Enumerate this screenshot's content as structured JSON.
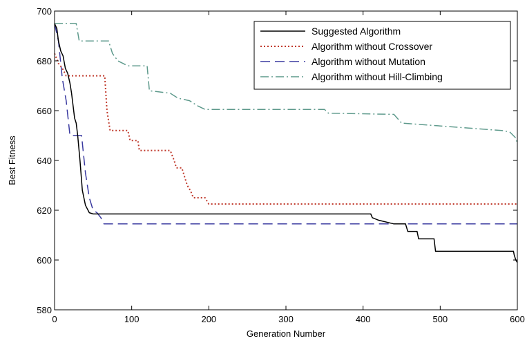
{
  "chart_data": {
    "type": "line",
    "title": "",
    "xlabel": "Generation Number",
    "ylabel": "Best Fitness",
    "xlim": [
      0,
      600
    ],
    "ylim": [
      580,
      700
    ],
    "xticks": [
      0,
      100,
      200,
      300,
      400,
      500,
      600
    ],
    "yticks": [
      580,
      600,
      620,
      640,
      660,
      680,
      700
    ],
    "grid": false,
    "legend_position": "top-right",
    "series": [
      {
        "name": "Suggested Algorithm",
        "color": "#000000",
        "style": "solid",
        "points": [
          [
            0,
            695
          ],
          [
            3,
            693
          ],
          [
            5,
            688
          ],
          [
            8,
            684
          ],
          [
            11,
            682
          ],
          [
            14,
            677
          ],
          [
            17,
            675
          ],
          [
            20,
            671
          ],
          [
            22,
            667
          ],
          [
            24,
            662
          ],
          [
            26,
            657
          ],
          [
            28,
            655
          ],
          [
            30,
            650
          ],
          [
            33,
            640
          ],
          [
            36,
            628
          ],
          [
            40,
            622
          ],
          [
            45,
            619
          ],
          [
            50,
            618.5
          ],
          [
            410,
            618.5
          ],
          [
            412,
            617
          ],
          [
            420,
            616
          ],
          [
            440,
            614.5
          ],
          [
            455,
            614.5
          ],
          [
            458,
            611.5
          ],
          [
            470,
            611.5
          ],
          [
            472,
            608.5
          ],
          [
            492,
            608.5
          ],
          [
            494,
            603.5
          ],
          [
            595,
            603.5
          ],
          [
            596,
            602
          ],
          [
            598,
            600
          ],
          [
            600,
            599
          ]
        ]
      },
      {
        "name": "Algorithm without Crossover",
        "color": "#c0392b",
        "style": "dotted",
        "points": [
          [
            0,
            683
          ],
          [
            5,
            679
          ],
          [
            10,
            677
          ],
          [
            15,
            674
          ],
          [
            65,
            674
          ],
          [
            68,
            660
          ],
          [
            72,
            652
          ],
          [
            95,
            652
          ],
          [
            98,
            648
          ],
          [
            108,
            648
          ],
          [
            110,
            644
          ],
          [
            150,
            644
          ],
          [
            155,
            640
          ],
          [
            158,
            637
          ],
          [
            165,
            637
          ],
          [
            168,
            634
          ],
          [
            172,
            630
          ],
          [
            176,
            628
          ],
          [
            180,
            625
          ],
          [
            195,
            625
          ],
          [
            200,
            622.5
          ],
          [
            600,
            622.5
          ]
        ]
      },
      {
        "name": "Algorithm without Mutation",
        "color": "#3a3aa0",
        "style": "dashed",
        "points": [
          [
            0,
            695
          ],
          [
            5,
            688
          ],
          [
            10,
            673
          ],
          [
            15,
            664
          ],
          [
            20,
            650
          ],
          [
            35,
            650
          ],
          [
            40,
            635
          ],
          [
            45,
            625
          ],
          [
            50,
            620
          ],
          [
            55,
            619
          ],
          [
            60,
            617
          ],
          [
            64,
            614.5
          ],
          [
            600,
            614.5
          ]
        ]
      },
      {
        "name": "Algorithm without Hill-Climbing",
        "color": "#5e9a8c",
        "style": "dashdot",
        "points": [
          [
            0,
            695
          ],
          [
            28,
            695
          ],
          [
            32,
            688
          ],
          [
            70,
            688
          ],
          [
            75,
            683
          ],
          [
            82,
            680
          ],
          [
            95,
            678
          ],
          [
            120,
            678
          ],
          [
            123,
            668
          ],
          [
            150,
            667
          ],
          [
            160,
            665
          ],
          [
            175,
            664
          ],
          [
            185,
            662
          ],
          [
            195,
            660.5
          ],
          [
            350,
            660.5
          ],
          [
            355,
            659
          ],
          [
            440,
            658.5
          ],
          [
            450,
            655
          ],
          [
            580,
            652
          ],
          [
            590,
            651.5
          ],
          [
            598,
            649
          ],
          [
            600,
            647
          ]
        ]
      }
    ]
  }
}
